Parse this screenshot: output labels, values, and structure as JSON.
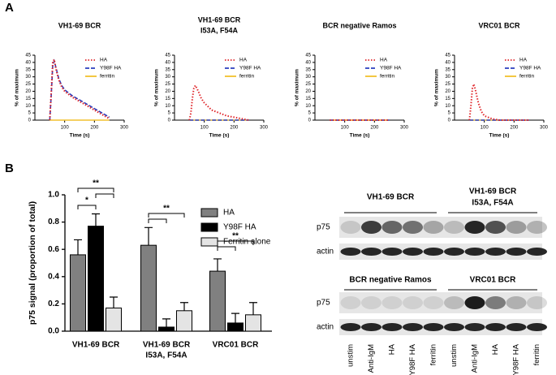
{
  "panels": [
    "A",
    "B"
  ],
  "chart_data": [
    {
      "type": "line",
      "title": [
        "VH1-69 BCR"
      ],
      "xlabel": "Time (s)",
      "ylabel": "% of maximum",
      "x": [
        50,
        55,
        60,
        65,
        70,
        80,
        90,
        100,
        125,
        150,
        175,
        200,
        225,
        250
      ],
      "series": [
        {
          "name": "HA",
          "color": "#e0262b",
          "style": "dotted",
          "values": [
            0,
            20,
            40,
            42,
            36,
            28,
            23,
            20,
            16,
            13,
            10,
            7,
            4,
            1
          ]
        },
        {
          "name": "Y98F HA",
          "color": "#2a3fbf",
          "style": "dashed",
          "values": [
            0,
            18,
            38,
            41,
            37,
            29,
            24,
            21,
            17,
            14,
            11,
            8,
            5,
            2
          ]
        },
        {
          "name": "ferritin",
          "color": "#f2c12e",
          "style": "solid",
          "values": [
            0,
            0,
            0,
            0,
            0,
            0,
            0,
            0,
            0,
            0,
            0,
            0,
            0,
            0
          ]
        }
      ],
      "xlim": [
        0,
        300
      ],
      "xticks": [
        100,
        200,
        300
      ],
      "ylim": [
        0,
        45
      ],
      "yticks": [
        0,
        5,
        10,
        15,
        20,
        25,
        30,
        35,
        40,
        45
      ]
    },
    {
      "type": "line",
      "title": [
        "VH1-69 BCR",
        "I53A, F54A"
      ],
      "xlabel": "Time (s)",
      "ylabel": "% of maximum",
      "x": [
        50,
        55,
        60,
        65,
        70,
        80,
        90,
        100,
        125,
        150,
        175,
        200,
        225,
        250
      ],
      "series": [
        {
          "name": "HA",
          "color": "#e0262b",
          "style": "dotted",
          "values": [
            0,
            5,
            15,
            22,
            24,
            20,
            15,
            12,
            7,
            5,
            3,
            2,
            1,
            0
          ]
        },
        {
          "name": "Y98F HA",
          "color": "#2a3fbf",
          "style": "dashed",
          "values": [
            0,
            0,
            0,
            0,
            0,
            0,
            0,
            0,
            0,
            0,
            0,
            0,
            0,
            0
          ]
        },
        {
          "name": "ferritin",
          "color": "#f2c12e",
          "style": "solid",
          "values": [
            0,
            0,
            0,
            0,
            0,
            0,
            0,
            0,
            0,
            0,
            0,
            0,
            0,
            0
          ]
        }
      ],
      "xlim": [
        0,
        300
      ],
      "xticks": [
        100,
        200,
        300
      ],
      "ylim": [
        0,
        45
      ],
      "yticks": [
        0,
        5,
        10,
        15,
        20,
        25,
        30,
        35,
        40,
        45
      ]
    },
    {
      "type": "line",
      "title": [
        "BCR negative Ramos"
      ],
      "xlabel": "Time (s)",
      "ylabel": "% of maximum",
      "x": [
        50,
        55,
        60,
        65,
        70,
        80,
        90,
        100,
        125,
        150,
        175,
        200,
        225,
        250
      ],
      "series": [
        {
          "name": "HA",
          "color": "#e0262b",
          "style": "dotted",
          "values": [
            0,
            0,
            0,
            0,
            0,
            0,
            0,
            0,
            0,
            0,
            0,
            0,
            0,
            0
          ]
        },
        {
          "name": "Y98F HA",
          "color": "#2a3fbf",
          "style": "dashed",
          "values": [
            0,
            0,
            0,
            0,
            0,
            0,
            0,
            0,
            0,
            0,
            0,
            0,
            0,
            0
          ]
        },
        {
          "name": "ferritin",
          "color": "#f2c12e",
          "style": "solid",
          "values": [
            0,
            0,
            0,
            0,
            0,
            0,
            0,
            0,
            0,
            0,
            0,
            0,
            0,
            0
          ]
        }
      ],
      "xlim": [
        0,
        300
      ],
      "xticks": [
        100,
        200,
        300
      ],
      "ylim": [
        0,
        45
      ],
      "yticks": [
        0,
        5,
        10,
        15,
        20,
        25,
        30,
        35,
        40,
        45
      ]
    },
    {
      "type": "line",
      "title": [
        "VRC01 BCR"
      ],
      "xlabel": "Time (s)",
      "ylabel": "% of maximum",
      "x": [
        50,
        55,
        60,
        65,
        70,
        80,
        90,
        100,
        125,
        150,
        175,
        200,
        225,
        250
      ],
      "series": [
        {
          "name": "HA",
          "color": "#e0262b",
          "style": "dotted",
          "values": [
            0,
            10,
            22,
            25,
            21,
            12,
            6,
            3,
            1,
            0,
            0,
            0,
            0,
            0
          ]
        },
        {
          "name": "Y98F HA",
          "color": "#2a3fbf",
          "style": "dashed",
          "values": [
            0,
            0,
            0,
            0,
            0,
            0,
            0,
            0,
            0,
            0,
            0,
            0,
            0,
            0
          ]
        },
        {
          "name": "ferritin",
          "color": "#f2c12e",
          "style": "solid",
          "values": [
            0,
            0,
            0,
            0,
            0,
            0,
            0,
            0,
            0,
            0,
            0,
            0,
            0,
            0
          ]
        }
      ],
      "xlim": [
        0,
        300
      ],
      "xticks": [
        100,
        200,
        300
      ],
      "ylim": [
        0,
        45
      ],
      "yticks": [
        0,
        5,
        10,
        15,
        20,
        25,
        30,
        35,
        40,
        45
      ]
    },
    {
      "type": "bar",
      "ylabel": "p75 signal (proportion of total)",
      "categories": [
        [
          "VH1-69 BCR"
        ],
        [
          "VH1-69 BCR",
          "I53A, F54A"
        ],
        [
          "VRC01 BCR"
        ]
      ],
      "series": [
        {
          "name": "HA",
          "color": "#808080",
          "values": [
            0.56,
            0.63,
            0.44
          ],
          "errors": [
            0.11,
            0.13,
            0.09
          ]
        },
        {
          "name": "Y98F HA",
          "color": "#000000",
          "values": [
            0.77,
            0.03,
            0.06
          ],
          "errors": [
            0.09,
            0.06,
            0.07
          ]
        },
        {
          "name": "Ferritin alone",
          "color": "#e4e4e4",
          "values": [
            0.17,
            0.15,
            0.12
          ],
          "errors": [
            0.08,
            0.06,
            0.09
          ]
        }
      ],
      "ylim": [
        0,
        1
      ],
      "yticks": [
        {
          "value": 0,
          "label": "0.0"
        },
        {
          "value": 0.2,
          "label": "0.2"
        },
        {
          "value": 0.4,
          "label": "0.4"
        },
        {
          "value": 0.6,
          "label": "0.6"
        },
        {
          "value": 0.8,
          "label": "0.8"
        },
        {
          "value": 1,
          "label": "1.0"
        }
      ],
      "annotations": [
        "**",
        "*",
        "**",
        "**"
      ]
    }
  ],
  "blot": {
    "top_headers": [
      [
        "VH1-69 BCR"
      ],
      [
        "VH1-69 BCR",
        "I53A, F54A"
      ]
    ],
    "bottom_headers": [
      [
        "BCR negative Ramos"
      ],
      [
        "VRC01 BCR"
      ]
    ],
    "rows": [
      "p75",
      "actin"
    ],
    "lanes": [
      "unstim",
      "Anti-IgM",
      "HA",
      "Y98F HA",
      "ferritin",
      "unstim",
      "Anti-IgM",
      "HA",
      "Y98F HA",
      "ferritin"
    ]
  }
}
